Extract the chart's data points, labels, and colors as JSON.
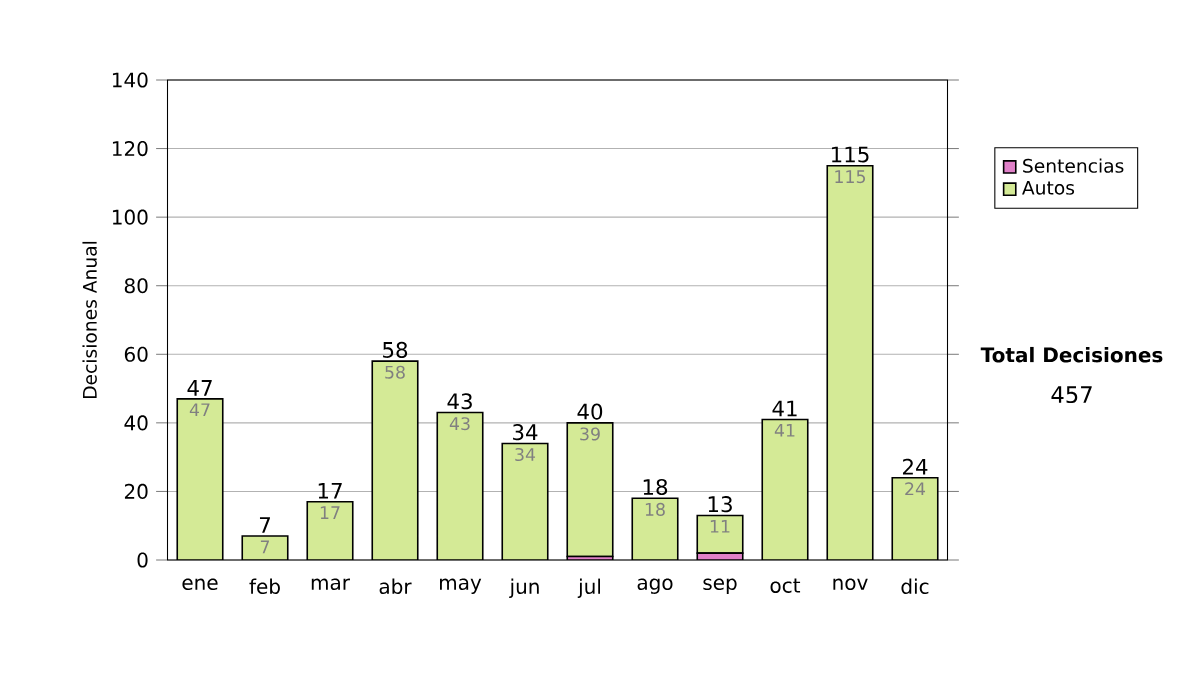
{
  "chart_data": {
    "type": "bar",
    "stacked": true,
    "ylabel": "Decisiones Anual",
    "categories": [
      "ene",
      "feb",
      "mar",
      "abr",
      "may",
      "jun",
      "jul",
      "ago",
      "sep",
      "oct",
      "nov",
      "dic"
    ],
    "series": [
      {
        "name": "Sentencias",
        "color": "#e080c8",
        "values": [
          0,
          0,
          0,
          0,
          0,
          0,
          1,
          0,
          2,
          0,
          0,
          0
        ]
      },
      {
        "name": "Autos",
        "color": "#d4ea96",
        "values": [
          47,
          7,
          17,
          58,
          43,
          34,
          39,
          18,
          11,
          41,
          115,
          24
        ],
        "value_labels": [
          "47",
          "7",
          "17",
          "58",
          "43",
          "34",
          "39",
          "18",
          "11",
          "41",
          "115",
          "24"
        ]
      }
    ],
    "totals": [
      "47",
      "7",
      "17",
      "58",
      "43",
      "34",
      "40",
      "18",
      "13",
      "41",
      "115",
      "24"
    ],
    "ylim": [
      0,
      140
    ],
    "yticks": [
      0,
      20,
      40,
      60,
      80,
      100,
      120,
      140
    ],
    "grid": "y",
    "legend": "right",
    "annotations": [
      "Total Decisiones",
      "457"
    ]
  }
}
